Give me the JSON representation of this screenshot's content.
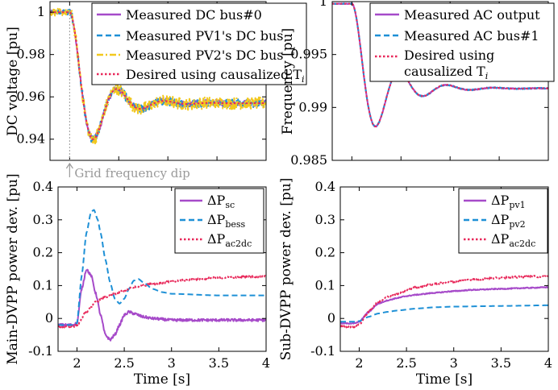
{
  "colors": {
    "purple": "#a64ac9",
    "blue": "#1e90d6",
    "yellow": "#f2c81e",
    "red": "#e8285a",
    "grid_dip": "#9a9a9a"
  },
  "chart_data": [
    {
      "id": "dc_voltage",
      "type": "line",
      "ylabel": "DC voltage [pu]",
      "xlabel": "",
      "xlim": [
        1.8,
        4.0
      ],
      "ylim": [
        0.93,
        1.005
      ],
      "yticks": [
        0.94,
        0.96,
        0.98,
        1.0
      ],
      "ytick_labels": [
        "0.94",
        "0.96",
        "0.98",
        "1"
      ],
      "xticks": [
        2,
        2.5,
        3,
        3.5,
        4
      ],
      "annotation": "Grid frequency dip",
      "annotation_x": 2.0,
      "legend": "top-right",
      "response": {
        "t0": 2.0,
        "base": 1.0,
        "final": 0.957,
        "dip": 0.94,
        "tmin": 2.24,
        "overshoot_t": 2.52,
        "overshoot": 0.965
      },
      "series": [
        {
          "name": "Measured DC bus#0",
          "style": "solid",
          "color": "#a64ac9",
          "noise": 0.0015,
          "values_note": "1.0 → min 0.940 at 2.24s → 0.965 at 2.52s → 0.957"
        },
        {
          "name": "Measured PV1's DC bus",
          "style": "dashed",
          "color": "#1e90d6",
          "noise": 0.002
        },
        {
          "name": "Measured PV2's DC bus",
          "style": "dashdot",
          "color": "#f2c81e",
          "noise": 0.0028
        },
        {
          "name": "Desired using causalized T",
          "name_sub": "i",
          "style": "dotted",
          "color": "#e8285a",
          "noise": 0.0
        }
      ]
    },
    {
      "id": "ac_frequency",
      "type": "line",
      "ylabel": "Frequency [pu]",
      "xlabel": "",
      "xlim": [
        1.8,
        4.0
      ],
      "ylim": [
        0.985,
        1.0
      ],
      "yticks": [
        0.985,
        0.99,
        0.995,
        1.0
      ],
      "ytick_labels": [
        "0.985",
        "0.99",
        "0.995",
        "1"
      ],
      "xticks": [
        2,
        2.5,
        3,
        3.5,
        4
      ],
      "legend": "top-right",
      "response": {
        "t0": 2.0,
        "base": 0.9998,
        "final": 0.9918,
        "dip": 0.9882,
        "tmin": 2.24,
        "overshoot_t": 2.52,
        "overshoot": 0.9932
      },
      "series": [
        {
          "name": "Measured AC output",
          "style": "solid",
          "color": "#a64ac9",
          "noise": 5e-05
        },
        {
          "name": "Measured AC bus#1",
          "style": "dashed",
          "color": "#1e90d6",
          "noise": 5e-05
        },
        {
          "name": "Desired using causalized T",
          "name_line1": "Desired using",
          "name_line2": "causalized T",
          "name_sub": "i",
          "style": "dotted",
          "color": "#e8285a",
          "noise": 0.0
        }
      ]
    },
    {
      "id": "main_dvpp_power",
      "type": "line",
      "ylabel": "Main-DVPP power dev. [pu]",
      "xlabel": "Time [s]",
      "xlim": [
        1.8,
        4.0
      ],
      "ylim": [
        -0.1,
        0.4
      ],
      "yticks": [
        -0.1,
        0,
        0.1,
        0.2,
        0.3,
        0.4
      ],
      "ytick_labels": [
        "-0.1",
        "0",
        "0.1",
        "0.2",
        "0.3",
        "0.4"
      ],
      "xticks": [
        2,
        2.5,
        3,
        3.5,
        4
      ],
      "xtick_labels": [
        "2",
        "2.5",
        "3",
        "3.5",
        "4"
      ],
      "legend": "top-right",
      "series": [
        {
          "name": "ΔP",
          "sub": "sc",
          "style": "solid",
          "color": "#a64ac9",
          "noise": 0.004,
          "x": [
            1.8,
            1.95,
            2.0,
            2.05,
            2.1,
            2.15,
            2.2,
            2.25,
            2.3,
            2.35,
            2.4,
            2.45,
            2.5,
            2.55,
            2.6,
            2.7,
            2.8,
            3.0,
            3.5,
            4.0
          ],
          "y": [
            -0.02,
            -0.02,
            -0.015,
            0.09,
            0.15,
            0.13,
            0.075,
            0.01,
            -0.05,
            -0.065,
            -0.05,
            -0.02,
            0.01,
            0.02,
            0.015,
            0.005,
            0.0,
            -0.005,
            -0.005,
            -0.005
          ]
        },
        {
          "name": "ΔP",
          "sub": "bess",
          "style": "dashed",
          "color": "#1e90d6",
          "noise": 0.0,
          "x": [
            1.8,
            1.95,
            2.0,
            2.05,
            2.1,
            2.15,
            2.18,
            2.22,
            2.25,
            2.3,
            2.35,
            2.4,
            2.45,
            2.5,
            2.55,
            2.6,
            2.65,
            2.7,
            2.8,
            2.9,
            3.0,
            3.5,
            4.0
          ],
          "y": [
            -0.02,
            -0.02,
            -0.015,
            0.13,
            0.26,
            0.325,
            0.33,
            0.3,
            0.26,
            0.18,
            0.11,
            0.06,
            0.045,
            0.06,
            0.09,
            0.115,
            0.12,
            0.11,
            0.09,
            0.08,
            0.075,
            0.07,
            0.07
          ]
        },
        {
          "name": "ΔP",
          "sub": "ac2dc",
          "style": "dotted",
          "color": "#e8285a",
          "noise": 0.003,
          "x": [
            1.8,
            1.95,
            2.0,
            2.1,
            2.2,
            2.3,
            2.4,
            2.5,
            2.6,
            2.8,
            3.0,
            3.2,
            3.5,
            3.8,
            4.0
          ],
          "y": [
            -0.025,
            -0.025,
            -0.02,
            0.02,
            0.05,
            0.065,
            0.075,
            0.085,
            0.095,
            0.105,
            0.112,
            0.118,
            0.124,
            0.127,
            0.128
          ]
        }
      ]
    },
    {
      "id": "sub_dvpp_power",
      "type": "line",
      "ylabel": "Sub-DVPP power dev. [pu]",
      "xlabel": "Time [s]",
      "xlim": [
        1.8,
        4.0
      ],
      "ylim": [
        -0.1,
        0.4
      ],
      "yticks": [
        -0.1,
        0,
        0.1,
        0.2,
        0.3,
        0.4
      ],
      "ytick_labels": [
        "-0.1",
        "0",
        "0.1",
        "0.2",
        "0.3",
        "0.4"
      ],
      "xticks": [
        2,
        2.5,
        3,
        3.5,
        4
      ],
      "xtick_labels": [
        "2",
        "2.5",
        "3",
        "3.5",
        "4"
      ],
      "legend": "top-right",
      "series": [
        {
          "name": "ΔP",
          "sub": "pv1",
          "style": "solid",
          "color": "#a64ac9",
          "noise": 0.0015,
          "x": [
            1.8,
            1.95,
            2.0,
            2.1,
            2.2,
            2.3,
            2.4,
            2.5,
            2.6,
            2.8,
            3.0,
            3.2,
            3.5,
            3.8,
            4.0
          ],
          "y": [
            -0.015,
            -0.015,
            -0.01,
            0.02,
            0.045,
            0.055,
            0.062,
            0.068,
            0.072,
            0.078,
            0.083,
            0.087,
            0.09,
            0.093,
            0.095
          ]
        },
        {
          "name": "ΔP",
          "sub": "pv2",
          "style": "dashed",
          "color": "#1e90d6",
          "noise": 0.0,
          "x": [
            1.8,
            1.95,
            2.0,
            2.1,
            2.2,
            2.3,
            2.4,
            2.6,
            2.8,
            3.0,
            3.5,
            4.0
          ],
          "y": [
            -0.01,
            -0.01,
            -0.008,
            0.005,
            0.015,
            0.02,
            0.024,
            0.03,
            0.034,
            0.036,
            0.038,
            0.04
          ]
        },
        {
          "name": "ΔP",
          "sub": "ac2dc",
          "style": "dotted",
          "color": "#e8285a",
          "noise": 0.003,
          "x": [
            1.8,
            1.95,
            2.0,
            2.1,
            2.2,
            2.3,
            2.4,
            2.5,
            2.6,
            2.8,
            3.0,
            3.2,
            3.5,
            3.8,
            4.0
          ],
          "y": [
            -0.025,
            -0.025,
            -0.02,
            0.02,
            0.05,
            0.065,
            0.075,
            0.085,
            0.095,
            0.105,
            0.112,
            0.118,
            0.124,
            0.127,
            0.128
          ]
        }
      ]
    }
  ]
}
